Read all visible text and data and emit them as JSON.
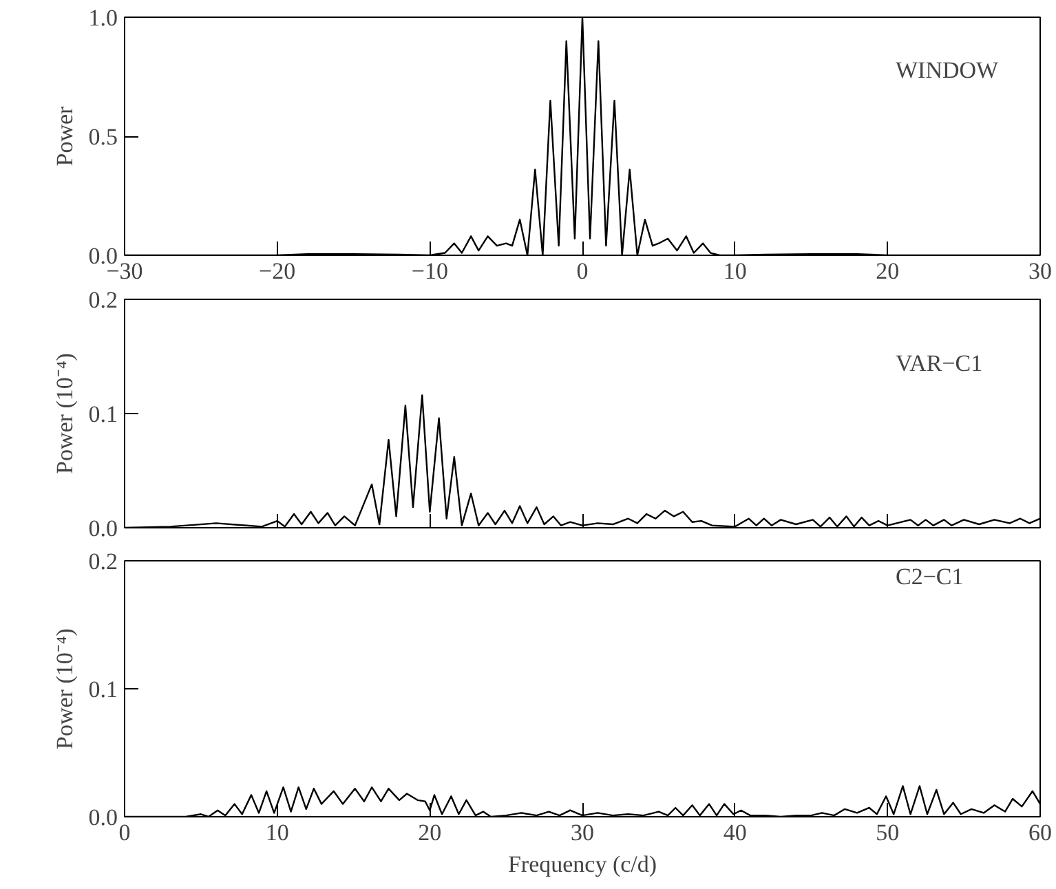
{
  "chart_data": [
    {
      "type": "line",
      "ylabel": "Power",
      "annotations": [
        "WINDOW"
      ],
      "xlim": [
        -30,
        30
      ],
      "ylim": [
        0,
        1
      ],
      "xticks": [
        {
          "value": -30,
          "label": "−30"
        },
        {
          "value": -20,
          "label": "−20"
        },
        {
          "value": -10,
          "label": "−10"
        },
        0,
        10,
        20,
        30
      ],
      "yticks": [
        {
          "value": 0,
          "label": "0.0"
        },
        {
          "value": 0.5,
          "label": "0.5"
        },
        {
          "value": 1,
          "label": "1.0"
        }
      ],
      "grid": false,
      "series": [
        {
          "color": "#000000",
          "x": [
            -30,
            -20,
            -18,
            -15,
            -12,
            -10,
            -9,
            -8.4,
            -7.9,
            -7.3,
            -6.8,
            -6.2,
            -5.6,
            -5.0,
            -4.6,
            -4.1,
            -3.6,
            -3.1,
            -2.6,
            -2.1,
            -1.55,
            -1.05,
            -0.5,
            0,
            0.5,
            1.05,
            1.55,
            2.1,
            2.6,
            3.1,
            3.6,
            4.1,
            4.6,
            5.0,
            5.6,
            6.2,
            6.8,
            7.3,
            7.9,
            8.4,
            9,
            10,
            12,
            15,
            18,
            20,
            30
          ],
          "values": [
            0,
            0,
            0.005,
            0.005,
            0.003,
            0,
            0.01,
            0.05,
            0.01,
            0.08,
            0.02,
            0.08,
            0.04,
            0.05,
            0.04,
            0.15,
            0,
            0.36,
            0,
            0.65,
            0.04,
            0.9,
            0.07,
            1.0,
            0.07,
            0.9,
            0.04,
            0.65,
            0,
            0.36,
            0,
            0.15,
            0.04,
            0.05,
            0.07,
            0.02,
            0.08,
            0.01,
            0.05,
            0.01,
            0,
            0,
            0.003,
            0.005,
            0.005,
            0,
            0
          ]
        }
      ]
    },
    {
      "type": "line",
      "ylabel": "Power (10⁻⁴)",
      "annotations": [
        "VAR−C1"
      ],
      "xlim": [
        0,
        60
      ],
      "ylim": [
        0,
        0.2
      ],
      "xticks": [
        0,
        10,
        20,
        30,
        40,
        50,
        60
      ],
      "yticks": [
        {
          "value": 0,
          "label": "0.0"
        },
        {
          "value": 0.1,
          "label": "0.1"
        },
        {
          "value": 0.2,
          "label": "0.2"
        }
      ],
      "tick_labels": "y",
      "grid": false,
      "series": [
        {
          "color": "#000000",
          "x": [
            0,
            3,
            6,
            8,
            9,
            10,
            10.5,
            11.1,
            11.6,
            12.2,
            12.7,
            13.3,
            13.8,
            14.4,
            15.1,
            16.2,
            16.7,
            17.3,
            17.8,
            18.4,
            18.9,
            19.5,
            20.0,
            20.6,
            21.1,
            21.6,
            22.1,
            22.7,
            23.2,
            23.8,
            24.3,
            24.9,
            25.4,
            25.9,
            26.4,
            27.0,
            27.5,
            28.1,
            28.6,
            29.2,
            30,
            31,
            32,
            33,
            33.6,
            34.2,
            34.8,
            35.4,
            36,
            36.6,
            37.2,
            37.8,
            38.5,
            40,
            40.9,
            41.4,
            41.9,
            42.4,
            43,
            44,
            45.1,
            45.6,
            46.2,
            46.7,
            47.3,
            47.8,
            48.3,
            48.8,
            49.4,
            50,
            51.5,
            52,
            52.5,
            53,
            53.7,
            54.2,
            55,
            56,
            57,
            58,
            58.7,
            59.3,
            60
          ],
          "values": [
            0,
            0.001,
            0.004,
            0.002,
            0.001,
            0.006,
            0.001,
            0.012,
            0.003,
            0.014,
            0.004,
            0.013,
            0.002,
            0.01,
            0.002,
            0.038,
            0.003,
            0.077,
            0.01,
            0.107,
            0.018,
            0.116,
            0.014,
            0.096,
            0.008,
            0.062,
            0.002,
            0.03,
            0.002,
            0.013,
            0.003,
            0.015,
            0.004,
            0.019,
            0.004,
            0.018,
            0.003,
            0.01,
            0.002,
            0.005,
            0.002,
            0.004,
            0.003,
            0.008,
            0.004,
            0.012,
            0.008,
            0.015,
            0.01,
            0.014,
            0.005,
            0.006,
            0.002,
            0.001,
            0.008,
            0.002,
            0.008,
            0.002,
            0.007,
            0.003,
            0.007,
            0.001,
            0.009,
            0.001,
            0.01,
            0.001,
            0.009,
            0.002,
            0.006,
            0.002,
            0.007,
            0.002,
            0.007,
            0.002,
            0.007,
            0.002,
            0.007,
            0.003,
            0.007,
            0.004,
            0.008,
            0.004,
            0.008
          ]
        }
      ]
    },
    {
      "type": "line",
      "xlabel": "Frequency (c/d)",
      "ylabel": "Power (10⁻⁴)",
      "annotations": [
        "C2−C1"
      ],
      "xlim": [
        0,
        60
      ],
      "ylim": [
        0,
        0.2
      ],
      "xticks": [
        0,
        10,
        20,
        30,
        40,
        50,
        60
      ],
      "yticks": [
        {
          "value": 0,
          "label": "0.0"
        },
        {
          "value": 0.1,
          "label": "0.1"
        },
        {
          "value": 0.2,
          "label": "0.2"
        }
      ],
      "grid": false,
      "series": [
        {
          "color": "#000000",
          "x": [
            0,
            4,
            5,
            5.5,
            6.1,
            6.6,
            7.2,
            7.7,
            8.3,
            8.8,
            9.3,
            9.8,
            10.4,
            10.9,
            11.4,
            11.9,
            12.4,
            12.9,
            13.7,
            14.3,
            15.1,
            15.7,
            16.2,
            16.8,
            17.3,
            18,
            18.5,
            19.2,
            19.7,
            20.0,
            20.3,
            20.8,
            21.4,
            21.9,
            22.4,
            23,
            23.5,
            24,
            25,
            26,
            27,
            27.8,
            28.5,
            29.2,
            30,
            31,
            32,
            33,
            34,
            35,
            35.6,
            36.1,
            36.6,
            37.2,
            37.7,
            38.3,
            38.8,
            39.3,
            39.9,
            40.4,
            41,
            42,
            43,
            44,
            45,
            45.7,
            46.5,
            47.2,
            48,
            48.8,
            49.3,
            49.9,
            50.4,
            51,
            51.5,
            52.1,
            52.6,
            53.2,
            53.7,
            54.3,
            54.8,
            55.5,
            56.3,
            57,
            57.7,
            58.2,
            58.8,
            59.5,
            60
          ],
          "values": [
            0,
            0,
            0.002,
            0,
            0.005,
            0.001,
            0.01,
            0.002,
            0.017,
            0.003,
            0.02,
            0.003,
            0.023,
            0.004,
            0.023,
            0.006,
            0.022,
            0.01,
            0.02,
            0.01,
            0.022,
            0.012,
            0.023,
            0.012,
            0.022,
            0.013,
            0.018,
            0.013,
            0.012,
            0.005,
            0.017,
            0.002,
            0.016,
            0.002,
            0.013,
            0.001,
            0.004,
            0,
            0.001,
            0.003,
            0.001,
            0.004,
            0.001,
            0.005,
            0.001,
            0.003,
            0.001,
            0.002,
            0.001,
            0.004,
            0.001,
            0.007,
            0.001,
            0.009,
            0.001,
            0.01,
            0.001,
            0.01,
            0.002,
            0.005,
            0.001,
            0.001,
            0,
            0.001,
            0.001,
            0.003,
            0.001,
            0.006,
            0.003,
            0.007,
            0.002,
            0.016,
            0.002,
            0.024,
            0.002,
            0.024,
            0.002,
            0.021,
            0.002,
            0.011,
            0.002,
            0.006,
            0.003,
            0.009,
            0.004,
            0.014,
            0.008,
            0.02,
            0.01
          ]
        }
      ]
    }
  ]
}
